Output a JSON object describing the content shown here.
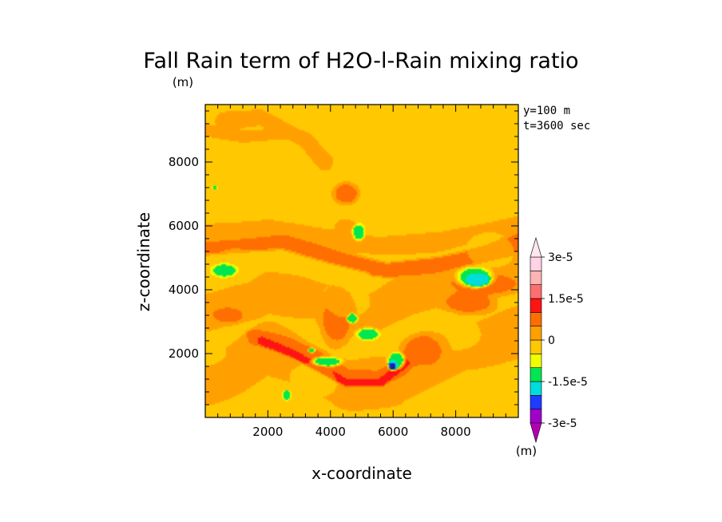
{
  "chart_data": {
    "type": "heatmap",
    "title": "Fall Rain term of H2O-l-Rain mixing ratio",
    "xlabel": "x-coordinate",
    "ylabel": "z-coordinate",
    "x_unit": "(m)",
    "y_unit": "(m)",
    "colorbar_unit": "(m)",
    "xlim": [
      0,
      10000
    ],
    "ylim": [
      0,
      9800
    ],
    "x_ticks": [
      "2000",
      "4000",
      "6000",
      "8000"
    ],
    "x_tick_values": [
      2000,
      4000,
      6000,
      8000
    ],
    "y_ticks": [
      "2000",
      "4000",
      "6000",
      "8000"
    ],
    "y_tick_values": [
      2000,
      4000,
      6000,
      8000
    ],
    "annotations": [
      "y=100 m",
      "t=3600 sec"
    ],
    "contour_levels": [
      -3e-05,
      -2.5e-05,
      -2e-05,
      -1.5e-05,
      -1e-05,
      -5e-06,
      0,
      5e-06,
      1e-05,
      1.5e-05,
      2e-05,
      2.5e-05,
      3e-05
    ],
    "level_colors": [
      "#a000c8",
      "#1e1ea0",
      "#1e3cff",
      "#00dcdc",
      "#00e650",
      "#eeff00",
      "#ffc800",
      "#ffa000",
      "#ff6e00",
      "#ff1414",
      "#ff6e6e",
      "#ffb4b4",
      "#ffd2e6"
    ],
    "colorbar_labels": [
      "3e-5",
      "1.5e-5",
      "0",
      "-1.5e-5",
      "-3e-5"
    ],
    "colorbar_label_values": [
      3e-05,
      1.5e-05,
      0,
      -1.5e-05,
      -3e-05
    ],
    "background_value": 2e-06,
    "features": [
      {
        "shape": "band",
        "points": [
          [
            0,
            5700
          ],
          [
            2000,
            5900
          ],
          [
            3500,
            5600
          ],
          [
            5500,
            5400
          ],
          [
            7500,
            5500
          ],
          [
            10000,
            6000
          ]
        ],
        "width": 900,
        "value": 6e-06
      },
      {
        "shape": "band",
        "points": [
          [
            0,
            3200
          ],
          [
            2000,
            4000
          ],
          [
            4000,
            3600
          ],
          [
            5000,
            3200
          ],
          [
            6500,
            3800
          ],
          [
            8500,
            4300
          ],
          [
            10000,
            4700
          ]
        ],
        "width": 1800,
        "value": 6e-06
      },
      {
        "shape": "band",
        "points": [
          [
            0,
            1200
          ],
          [
            2000,
            2100
          ],
          [
            4500,
            1000
          ],
          [
            6000,
            1000
          ],
          [
            8000,
            2200
          ],
          [
            10000,
            2600
          ]
        ],
        "width": 2200,
        "value": 6e-06
      },
      {
        "shape": "band",
        "points": [
          [
            600,
            9300
          ],
          [
            1800,
            9400
          ],
          [
            3200,
            8700
          ],
          [
            3800,
            8000
          ]
        ],
        "width": 700,
        "value": 6e-06
      },
      {
        "shape": "band",
        "points": [
          [
            0,
            9000
          ],
          [
            1200,
            8800
          ],
          [
            2800,
            8900
          ]
        ],
        "width": 500,
        "value": 6e-06
      },
      {
        "shape": "band",
        "points": [
          [
            0,
            5300
          ],
          [
            2500,
            5500
          ],
          [
            4200,
            5000
          ],
          [
            5800,
            4600
          ],
          [
            7500,
            4800
          ],
          [
            10000,
            5400
          ]
        ],
        "width": 600,
        "value": 1.1e-05
      },
      {
        "shape": "band",
        "points": [
          [
            5400,
            4600
          ],
          [
            7200,
            4700
          ],
          [
            8600,
            5000
          ],
          [
            10000,
            5600
          ]
        ],
        "width": 500,
        "value": 1.1e-05
      },
      {
        "shape": "band",
        "points": [
          [
            1600,
            2500
          ],
          [
            2500,
            2300
          ],
          [
            3500,
            1900
          ],
          [
            4500,
            1300
          ],
          [
            5500,
            1200
          ],
          [
            6200,
            1500
          ],
          [
            7000,
            2300
          ]
        ],
        "width": 700,
        "value": 1.1e-05
      },
      {
        "shape": "band",
        "points": [
          [
            1800,
            2400
          ],
          [
            2800,
            2000
          ],
          [
            3800,
            1500
          ],
          [
            4500,
            1100
          ],
          [
            5600,
            1100
          ],
          [
            6400,
            1700
          ]
        ],
        "width": 350,
        "value": 1.6e-05
      },
      {
        "shape": "blob",
        "center": [
          4200,
          3100
        ],
        "radii": [
          700,
          1100
        ],
        "value": 1.1e-05
      },
      {
        "shape": "blob",
        "center": [
          7000,
          2100
        ],
        "radii": [
          900,
          700
        ],
        "value": 1.1e-05
      },
      {
        "shape": "blob",
        "center": [
          8400,
          3600
        ],
        "radii": [
          1100,
          500
        ],
        "value": 1.1e-05
      },
      {
        "shape": "blob",
        "center": [
          700,
          3200
        ],
        "radii": [
          700,
          350
        ],
        "value": 1.1e-05
      },
      {
        "shape": "blob",
        "center": [
          4500,
          7000
        ],
        "radii": [
          550,
          450
        ],
        "value": 1.1e-05
      },
      {
        "shape": "blob",
        "center": [
          4500,
          6000
        ],
        "radii": [
          500,
          350
        ],
        "value": 6e-06
      },
      {
        "shape": "blob",
        "center": [
          8900,
          4200
        ],
        "radii": [
          1500,
          500
        ],
        "value": 1.1e-05
      },
      {
        "shape": "blob",
        "center": [
          2200,
          5800
        ],
        "radii": [
          500,
          250
        ],
        "value": 6e-06
      },
      {
        "shape": "blob",
        "center": [
          8600,
          4400
        ],
        "radii": [
          750,
          400
        ],
        "value": -7e-06
      },
      {
        "shape": "blob",
        "center": [
          8700,
          4300
        ],
        "radii": [
          500,
          270
        ],
        "value": -1.3e-05
      },
      {
        "shape": "blob",
        "center": [
          600,
          4600
        ],
        "radii": [
          500,
          250
        ],
        "value": -7e-06
      },
      {
        "shape": "blob",
        "center": [
          4900,
          5800
        ],
        "radii": [
          250,
          330
        ],
        "value": -7e-06
      },
      {
        "shape": "blob",
        "center": [
          5200,
          2600
        ],
        "radii": [
          500,
          250
        ],
        "value": -7e-06
      },
      {
        "shape": "blob",
        "center": [
          4700,
          3100
        ],
        "radii": [
          220,
          200
        ],
        "value": -7e-06
      },
      {
        "shape": "blob",
        "center": [
          3900,
          1750
        ],
        "radii": [
          600,
          200
        ],
        "value": -7e-06
      },
      {
        "shape": "blob",
        "center": [
          6100,
          1800
        ],
        "radii": [
          350,
          350
        ],
        "value": -7e-06
      },
      {
        "shape": "blob",
        "center": [
          6000,
          1650
        ],
        "radii": [
          220,
          230
        ],
        "value": -1.3e-05
      },
      {
        "shape": "blob",
        "center": [
          5980,
          1600
        ],
        "radii": [
          140,
          150
        ],
        "value": -2.2e-05
      },
      {
        "shape": "blob",
        "center": [
          2600,
          700
        ],
        "radii": [
          170,
          200
        ],
        "value": -7e-06
      },
      {
        "shape": "blob",
        "center": [
          3400,
          2100
        ],
        "radii": [
          150,
          100
        ],
        "value": -7e-06
      },
      {
        "shape": "blob",
        "center": [
          300,
          7200
        ],
        "radii": [
          120,
          60
        ],
        "value": -7e-06
      },
      {
        "shape": "blob",
        "center": [
          1500,
          2600
        ],
        "radii": [
          250,
          150
        ],
        "value": 1.1e-05
      }
    ]
  }
}
